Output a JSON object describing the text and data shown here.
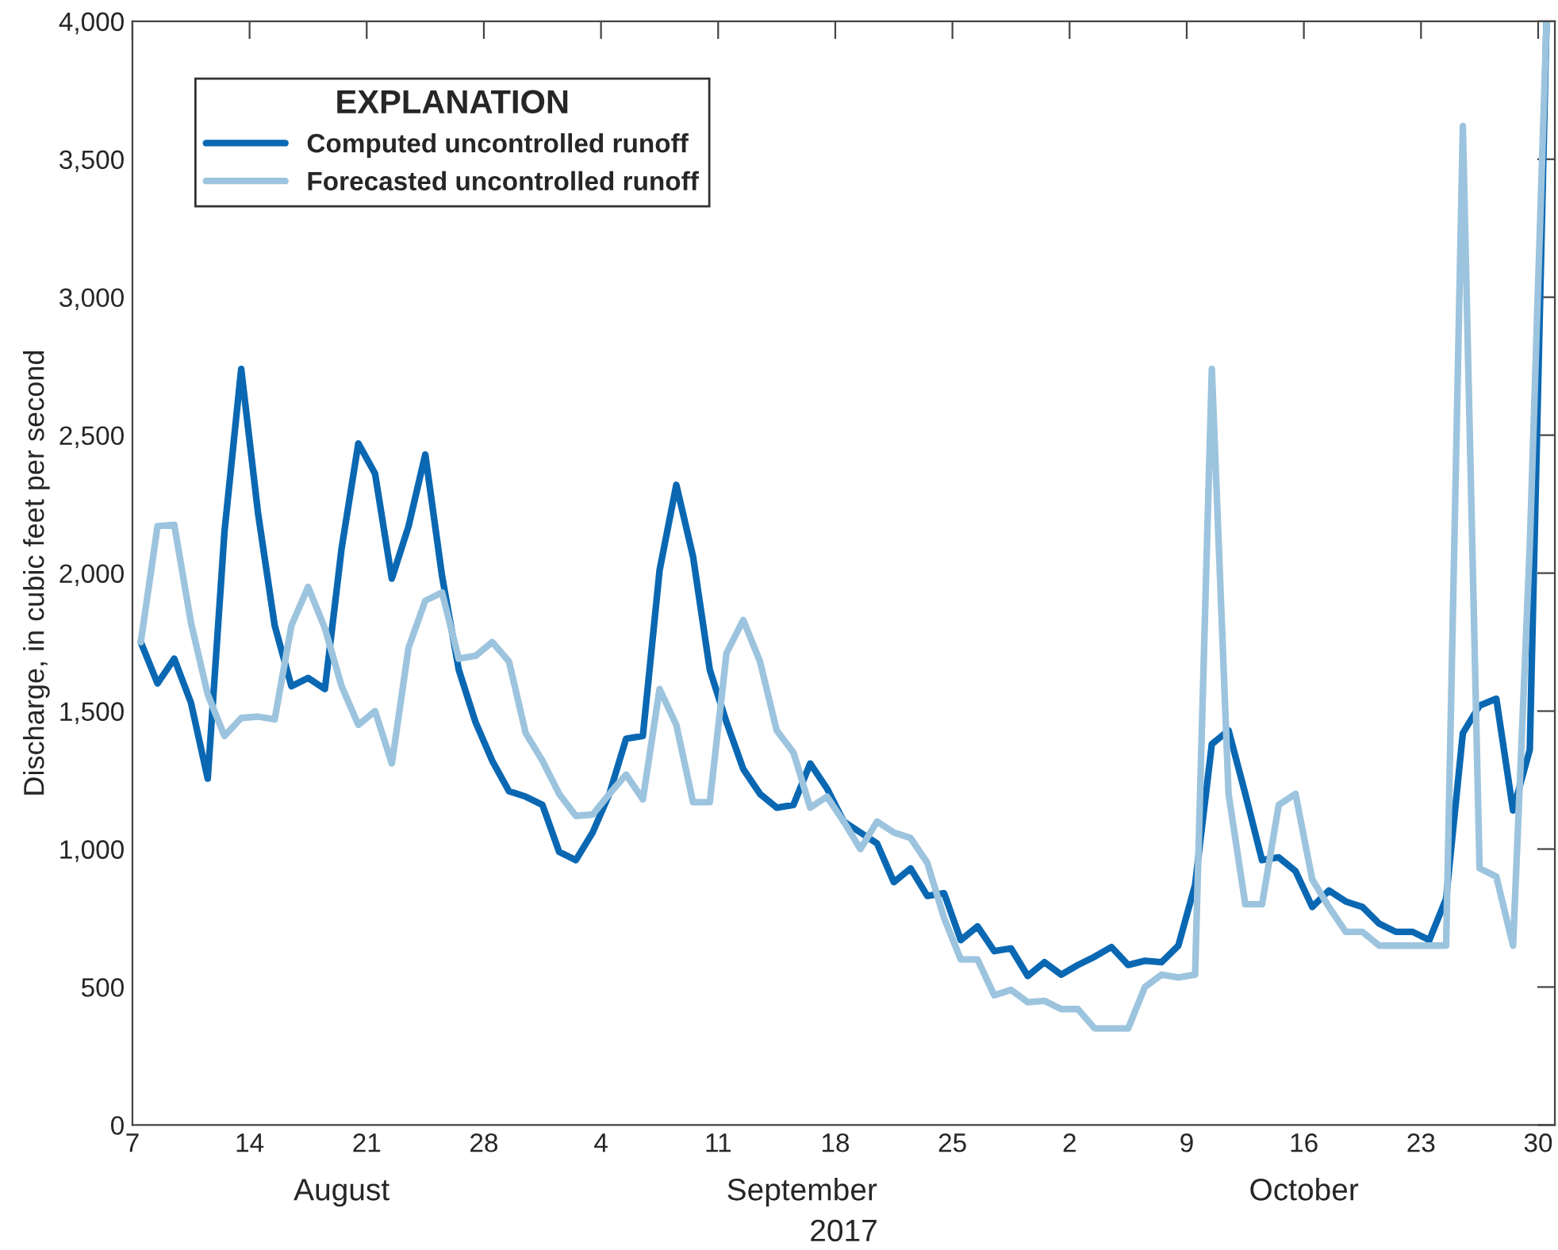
{
  "chart_data": {
    "type": "line",
    "ylabel": "Discharge, in cubic feet per second",
    "xlabel": "2017",
    "legend_title": "EXPLANATION",
    "legend": "top left",
    "grid": false,
    "line_style": "solid",
    "x": [
      "2017-08-07T12:00",
      "2017-08-08T12:00",
      "2017-08-09T12:00",
      "2017-08-10T12:00",
      "2017-08-11T12:00",
      "2017-08-12T12:00",
      "2017-08-13T12:00",
      "2017-08-14T12:00",
      "2017-08-15T12:00",
      "2017-08-16T12:00",
      "2017-08-17T12:00",
      "2017-08-18T12:00",
      "2017-08-19T12:00",
      "2017-08-20T12:00",
      "2017-08-21T12:00",
      "2017-08-22T12:00",
      "2017-08-23T12:00",
      "2017-08-24T12:00",
      "2017-08-25T12:00",
      "2017-08-26T12:00",
      "2017-08-27T12:00",
      "2017-08-28T12:00",
      "2017-08-29T12:00",
      "2017-08-30T12:00",
      "2017-08-31T12:00",
      "2017-09-01T12:00",
      "2017-09-02T12:00",
      "2017-09-03T12:00",
      "2017-09-04T12:00",
      "2017-09-05T12:00",
      "2017-09-06T12:00",
      "2017-09-07T12:00",
      "2017-09-08T12:00",
      "2017-09-09T12:00",
      "2017-09-10T12:00",
      "2017-09-11T12:00",
      "2017-09-12T12:00",
      "2017-09-13T12:00",
      "2017-09-14T12:00",
      "2017-09-15T12:00",
      "2017-09-16T12:00",
      "2017-09-17T12:00",
      "2017-09-18T12:00",
      "2017-09-19T12:00",
      "2017-09-20T12:00",
      "2017-09-21T12:00",
      "2017-09-22T12:00",
      "2017-09-23T12:00",
      "2017-09-24T12:00",
      "2017-09-25T12:00",
      "2017-09-26T12:00",
      "2017-09-27T12:00",
      "2017-09-28T12:00",
      "2017-09-29T12:00",
      "2017-09-30T12:00",
      "2017-10-01T12:00",
      "2017-10-02T12:00",
      "2017-10-03T12:00",
      "2017-10-04T12:00",
      "2017-10-05T12:00",
      "2017-10-06T12:00",
      "2017-10-07T12:00",
      "2017-10-08T12:00",
      "2017-10-09T12:00",
      "2017-10-10T12:00",
      "2017-10-11T12:00",
      "2017-10-12T12:00",
      "2017-10-13T12:00",
      "2017-10-14T12:00",
      "2017-10-15T12:00",
      "2017-10-16T12:00",
      "2017-10-17T12:00",
      "2017-10-18T12:00",
      "2017-10-19T12:00",
      "2017-10-20T12:00",
      "2017-10-21T12:00",
      "2017-10-22T12:00",
      "2017-10-23T12:00",
      "2017-10-24T12:00",
      "2017-10-25T12:00",
      "2017-10-26T12:00",
      "2017-10-27T12:00",
      "2017-10-28T12:00",
      "2017-10-29T12:00",
      "2017-10-30T12:00"
    ],
    "series": [
      {
        "name": "Computed uncontrolled runoff",
        "color": "#0a68b3",
        "values": [
          1750,
          1600,
          1690,
          1530,
          1255,
          2150,
          2740,
          2220,
          1810,
          1590,
          1620,
          1580,
          2090,
          2470,
          2360,
          1980,
          2170,
          2430,
          1990,
          1650,
          1460,
          1320,
          1210,
          1190,
          1160,
          990,
          960,
          1060,
          1200,
          1400,
          1410,
          2010,
          2320,
          2060,
          1650,
          1460,
          1290,
          1200,
          1150,
          1160,
          1310,
          1220,
          1100,
          1060,
          1020,
          880,
          930,
          830,
          840,
          670,
          720,
          630,
          640,
          540,
          590,
          545,
          580,
          610,
          645,
          580,
          595,
          590,
          650,
          870,
          1380,
          1430,
          1200,
          960,
          970,
          920,
          790,
          850,
          810,
          790,
          730,
          700,
          700,
          670,
          820,
          1420,
          1520,
          1545,
          1140,
          1360,
          4000
        ]
      },
      {
        "name": "Forecasted uncontrolled runoff",
        "color": "#9dc4de",
        "values": [
          1750,
          2170,
          2175,
          1820,
          1560,
          1410,
          1475,
          1480,
          1470,
          1810,
          1950,
          1800,
          1590,
          1450,
          1500,
          1310,
          1730,
          1900,
          1930,
          1690,
          1700,
          1750,
          1680,
          1420,
          1320,
          1200,
          1120,
          1125,
          1200,
          1270,
          1180,
          1580,
          1450,
          1170,
          1170,
          1710,
          1830,
          1680,
          1430,
          1350,
          1150,
          1190,
          1100,
          1000,
          1100,
          1060,
          1040,
          950,
          750,
          600,
          600,
          470,
          490,
          445,
          450,
          420,
          420,
          350,
          350,
          350,
          500,
          545,
          535,
          545,
          2740,
          1200,
          800,
          800,
          1160,
          1200,
          890,
          790,
          700,
          700,
          650,
          650,
          650,
          650,
          650,
          3620,
          930,
          900,
          650,
          2100,
          4000
        ]
      }
    ],
    "xlim": [
      "2017-08-07",
      "2017-10-31"
    ],
    "xticks": [
      {
        "value": "2017-08-07",
        "label": "7"
      },
      {
        "value": "2017-08-14",
        "label": "14"
      },
      {
        "value": "2017-08-21",
        "label": "21"
      },
      {
        "value": "2017-08-28",
        "label": "28"
      },
      {
        "value": "2017-09-04",
        "label": "4"
      },
      {
        "value": "2017-09-11",
        "label": "11"
      },
      {
        "value": "2017-09-18",
        "label": "18"
      },
      {
        "value": "2017-09-25",
        "label": "25"
      },
      {
        "value": "2017-10-02",
        "label": "2"
      },
      {
        "value": "2017-10-09",
        "label": "9"
      },
      {
        "value": "2017-10-16",
        "label": "16"
      },
      {
        "value": "2017-10-23",
        "label": "23"
      },
      {
        "value": "2017-10-30",
        "label": "30"
      }
    ],
    "ylim": [
      0,
      4000
    ],
    "yticks": [
      0,
      500,
      {
        "value": 1000,
        "label": "1,000"
      },
      {
        "value": 1500,
        "label": "1,500"
      },
      {
        "value": 2000,
        "label": "2,000"
      },
      {
        "value": 2500,
        "label": "2,500"
      },
      {
        "value": 3000,
        "label": "3,000"
      },
      {
        "value": 3500,
        "label": "3,500"
      },
      {
        "value": 4000,
        "label": "4,000"
      }
    ],
    "annotations": [
      "August",
      "September",
      "October"
    ]
  }
}
